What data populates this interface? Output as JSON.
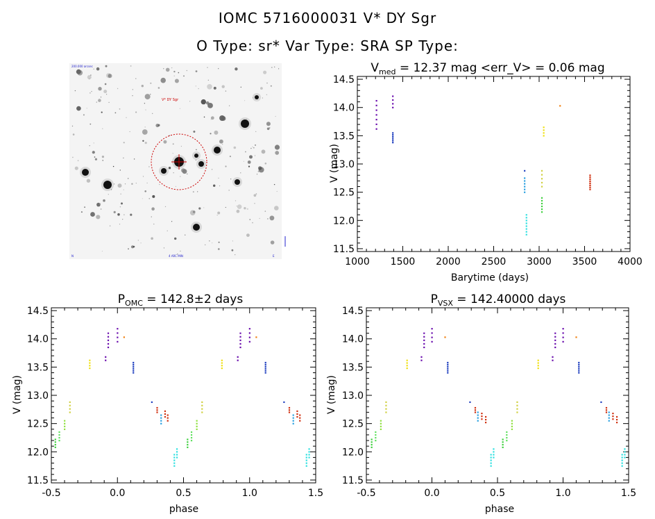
{
  "header": {
    "title_line1": "IOMC 5716000031    V* DY Sgr",
    "title_line2": "O Type: sr*   Var Type: SRA   SP Type:"
  },
  "finder_image": {
    "corner_labels": {
      "top_left": "200.000 arcsec",
      "bottom_left": "N",
      "bottom_center": "4 ARC MIN",
      "bottom_right": "E",
      "target_label": "V* DY Sgr"
    },
    "circle_color": "#cc0000"
  },
  "chart_data": [
    {
      "type": "scatter",
      "id": "lightcurve",
      "title": {
        "main": "V",
        "sub": "med",
        "rest": " = 12.37 mag <err_V> = 0.06 mag"
      },
      "xlabel": "Barytime (days)",
      "ylabel": "V (mag)",
      "xlim": [
        1000,
        4000
      ],
      "ylim": [
        14.55,
        11.45
      ],
      "xticks": [
        1000,
        1500,
        2000,
        2500,
        3000,
        3500,
        4000
      ],
      "yticks": [
        11.5,
        12.0,
        12.5,
        13.0,
        13.5,
        14.0,
        14.5
      ],
      "clusters": [
        {
          "x": 1210,
          "y0": 13.62,
          "y1": 14.12,
          "color": "#6a0dad",
          "n": 7
        },
        {
          "x": 1390,
          "y0": 13.38,
          "y1": 13.55,
          "color": "#1f3fbf",
          "n": 6
        },
        {
          "x": 1390,
          "y0": 14.0,
          "y1": 14.2,
          "color": "#6a0dad",
          "n": 4
        },
        {
          "x": 2840,
          "y0": 12.5,
          "y1": 12.75,
          "color": "#2aa0e0",
          "n": 6
        },
        {
          "x": 2840,
          "y0": 12.88,
          "y1": 12.9,
          "color": "#1f3fbf",
          "n": 1
        },
        {
          "x": 2860,
          "y0": 11.75,
          "y1": 12.1,
          "color": "#30e0e0",
          "n": 8
        },
        {
          "x": 3030,
          "y0": 12.15,
          "y1": 12.4,
          "color": "#40d040",
          "n": 6
        },
        {
          "x": 3030,
          "y0": 12.6,
          "y1": 12.88,
          "color": "#d0d040",
          "n": 5
        },
        {
          "x": 3050,
          "y0": 13.5,
          "y1": 13.65,
          "color": "#f0e010",
          "n": 4
        },
        {
          "x": 3230,
          "y0": 14.03,
          "y1": 14.03,
          "color": "#f08010",
          "n": 1
        },
        {
          "x": 3560,
          "y0": 12.55,
          "y1": 12.8,
          "color": "#d03010",
          "n": 8
        }
      ]
    },
    {
      "type": "scatter",
      "id": "phase_omc",
      "title": {
        "main": "P",
        "sub": "OMC",
        "rest": " = 142.8±2 days"
      },
      "xlabel": "phase",
      "ylabel": "V (mag)",
      "xlim": [
        -0.5,
        1.5
      ],
      "ylim": [
        14.55,
        11.45
      ],
      "xticks": [
        -0.5,
        0.0,
        0.5,
        1.0,
        1.5
      ],
      "yticks": [
        11.5,
        12.0,
        12.5,
        13.0,
        13.5,
        14.0,
        14.5
      ],
      "clusters": [
        {
          "x": -0.47,
          "y0": 12.08,
          "y1": 12.22,
          "color": "#40d040",
          "n": 4
        },
        {
          "x": -0.44,
          "y0": 12.2,
          "y1": 12.35,
          "color": "#60e060",
          "n": 4
        },
        {
          "x": -0.4,
          "y0": 12.4,
          "y1": 12.55,
          "color": "#90e040",
          "n": 4
        },
        {
          "x": -0.36,
          "y0": 12.7,
          "y1": 12.88,
          "color": "#d0d040",
          "n": 4
        },
        {
          "x": -0.21,
          "y0": 13.48,
          "y1": 13.62,
          "color": "#f0e010",
          "n": 4
        },
        {
          "x": -0.09,
          "y0": 13.62,
          "y1": 13.68,
          "color": "#6a0dad",
          "n": 2
        },
        {
          "x": -0.07,
          "y0": 13.85,
          "y1": 14.1,
          "color": "#6a0dad",
          "n": 5
        },
        {
          "x": 0.0,
          "y0": 13.95,
          "y1": 14.18,
          "color": "#6a0dad",
          "n": 4
        },
        {
          "x": 0.05,
          "y0": 14.03,
          "y1": 14.03,
          "color": "#f08010",
          "n": 1
        },
        {
          "x": 0.12,
          "y0": 13.4,
          "y1": 13.58,
          "color": "#1f3fbf",
          "n": 6
        },
        {
          "x": 0.26,
          "y0": 12.88,
          "y1": 12.9,
          "color": "#1f3fbf",
          "n": 1
        },
        {
          "x": 0.3,
          "y0": 12.7,
          "y1": 12.78,
          "color": "#d03010",
          "n": 3
        },
        {
          "x": 0.33,
          "y0": 12.5,
          "y1": 12.65,
          "color": "#2aa0e0",
          "n": 4
        },
        {
          "x": 0.36,
          "y0": 12.62,
          "y1": 12.72,
          "color": "#d03010",
          "n": 3
        },
        {
          "x": 0.38,
          "y0": 12.55,
          "y1": 12.65,
          "color": "#d03010",
          "n": 3
        },
        {
          "x": 0.43,
          "y0": 11.75,
          "y1": 11.95,
          "color": "#30e0e0",
          "n": 5
        },
        {
          "x": 0.45,
          "y0": 11.9,
          "y1": 12.05,
          "color": "#30e0e0",
          "n": 4
        },
        {
          "x": 0.53,
          "y0": 12.08,
          "y1": 12.22,
          "color": "#40d040",
          "n": 4
        },
        {
          "x": 0.56,
          "y0": 12.2,
          "y1": 12.35,
          "color": "#60e060",
          "n": 4
        },
        {
          "x": 0.6,
          "y0": 12.4,
          "y1": 12.55,
          "color": "#90e040",
          "n": 4
        },
        {
          "x": 0.64,
          "y0": 12.7,
          "y1": 12.88,
          "color": "#d0d040",
          "n": 4
        },
        {
          "x": 0.79,
          "y0": 13.48,
          "y1": 13.62,
          "color": "#f0e010",
          "n": 4
        },
        {
          "x": 0.91,
          "y0": 13.62,
          "y1": 13.68,
          "color": "#6a0dad",
          "n": 2
        },
        {
          "x": 0.93,
          "y0": 13.85,
          "y1": 14.1,
          "color": "#6a0dad",
          "n": 5
        },
        {
          "x": 1.0,
          "y0": 13.95,
          "y1": 14.18,
          "color": "#6a0dad",
          "n": 4
        },
        {
          "x": 1.05,
          "y0": 14.03,
          "y1": 14.03,
          "color": "#f08010",
          "n": 1
        },
        {
          "x": 1.12,
          "y0": 13.4,
          "y1": 13.58,
          "color": "#1f3fbf",
          "n": 6
        },
        {
          "x": 1.26,
          "y0": 12.88,
          "y1": 12.9,
          "color": "#1f3fbf",
          "n": 1
        },
        {
          "x": 1.3,
          "y0": 12.7,
          "y1": 12.78,
          "color": "#d03010",
          "n": 3
        },
        {
          "x": 1.33,
          "y0": 12.5,
          "y1": 12.65,
          "color": "#2aa0e0",
          "n": 4
        },
        {
          "x": 1.36,
          "y0": 12.62,
          "y1": 12.72,
          "color": "#d03010",
          "n": 3
        },
        {
          "x": 1.38,
          "y0": 12.55,
          "y1": 12.65,
          "color": "#d03010",
          "n": 3
        },
        {
          "x": 1.43,
          "y0": 11.75,
          "y1": 11.95,
          "color": "#30e0e0",
          "n": 5
        },
        {
          "x": 1.45,
          "y0": 11.9,
          "y1": 12.05,
          "color": "#30e0e0",
          "n": 4
        }
      ]
    },
    {
      "type": "scatter",
      "id": "phase_vsx",
      "title": {
        "main": "P",
        "sub": "VSX",
        "rest": " = 142.40000 days"
      },
      "xlabel": "phase",
      "ylabel": "V (mag)",
      "xlim": [
        -0.5,
        1.5
      ],
      "ylim": [
        14.55,
        11.45
      ],
      "xticks": [
        -0.5,
        0.0,
        0.5,
        1.0,
        1.5
      ],
      "yticks": [
        11.5,
        12.0,
        12.5,
        13.0,
        13.5,
        14.0,
        14.5
      ],
      "clusters": [
        {
          "x": -0.46,
          "y0": 12.08,
          "y1": 12.22,
          "color": "#40d040",
          "n": 4
        },
        {
          "x": -0.43,
          "y0": 12.2,
          "y1": 12.35,
          "color": "#60e060",
          "n": 4
        },
        {
          "x": -0.39,
          "y0": 12.4,
          "y1": 12.55,
          "color": "#90e040",
          "n": 4
        },
        {
          "x": -0.35,
          "y0": 12.7,
          "y1": 12.88,
          "color": "#d0d040",
          "n": 4
        },
        {
          "x": -0.19,
          "y0": 13.48,
          "y1": 13.62,
          "color": "#f0e010",
          "n": 4
        },
        {
          "x": -0.08,
          "y0": 13.62,
          "y1": 13.68,
          "color": "#6a0dad",
          "n": 2
        },
        {
          "x": -0.06,
          "y0": 13.85,
          "y1": 14.1,
          "color": "#6a0dad",
          "n": 5
        },
        {
          "x": 0.0,
          "y0": 13.95,
          "y1": 14.18,
          "color": "#6a0dad",
          "n": 4
        },
        {
          "x": 0.1,
          "y0": 14.03,
          "y1": 14.03,
          "color": "#f08010",
          "n": 1
        },
        {
          "x": 0.12,
          "y0": 13.4,
          "y1": 13.58,
          "color": "#1f3fbf",
          "n": 6
        },
        {
          "x": 0.29,
          "y0": 12.88,
          "y1": 12.9,
          "color": "#1f3fbf",
          "n": 1
        },
        {
          "x": 0.33,
          "y0": 12.7,
          "y1": 12.78,
          "color": "#d03010",
          "n": 3
        },
        {
          "x": 0.35,
          "y0": 12.55,
          "y1": 12.7,
          "color": "#2aa0e0",
          "n": 4
        },
        {
          "x": 0.38,
          "y0": 12.58,
          "y1": 12.68,
          "color": "#d03010",
          "n": 3
        },
        {
          "x": 0.41,
          "y0": 12.52,
          "y1": 12.62,
          "color": "#d03010",
          "n": 3
        },
        {
          "x": 0.45,
          "y0": 11.75,
          "y1": 11.95,
          "color": "#30e0e0",
          "n": 5
        },
        {
          "x": 0.47,
          "y0": 11.9,
          "y1": 12.05,
          "color": "#30e0e0",
          "n": 4
        },
        {
          "x": 0.54,
          "y0": 12.08,
          "y1": 12.22,
          "color": "#40d040",
          "n": 4
        },
        {
          "x": 0.57,
          "y0": 12.2,
          "y1": 12.35,
          "color": "#60e060",
          "n": 4
        },
        {
          "x": 0.61,
          "y0": 12.4,
          "y1": 12.55,
          "color": "#90e040",
          "n": 4
        },
        {
          "x": 0.65,
          "y0": 12.7,
          "y1": 12.88,
          "color": "#d0d040",
          "n": 4
        },
        {
          "x": 0.81,
          "y0": 13.48,
          "y1": 13.62,
          "color": "#f0e010",
          "n": 4
        },
        {
          "x": 0.92,
          "y0": 13.62,
          "y1": 13.68,
          "color": "#6a0dad",
          "n": 2
        },
        {
          "x": 0.94,
          "y0": 13.85,
          "y1": 14.1,
          "color": "#6a0dad",
          "n": 5
        },
        {
          "x": 1.0,
          "y0": 13.95,
          "y1": 14.18,
          "color": "#6a0dad",
          "n": 4
        },
        {
          "x": 1.1,
          "y0": 14.03,
          "y1": 14.03,
          "color": "#f08010",
          "n": 1
        },
        {
          "x": 1.12,
          "y0": 13.4,
          "y1": 13.58,
          "color": "#1f3fbf",
          "n": 6
        },
        {
          "x": 1.29,
          "y0": 12.88,
          "y1": 12.9,
          "color": "#1f3fbf",
          "n": 1
        },
        {
          "x": 1.33,
          "y0": 12.7,
          "y1": 12.78,
          "color": "#d03010",
          "n": 3
        },
        {
          "x": 1.35,
          "y0": 12.55,
          "y1": 12.7,
          "color": "#2aa0e0",
          "n": 4
        },
        {
          "x": 1.38,
          "y0": 12.58,
          "y1": 12.68,
          "color": "#d03010",
          "n": 3
        },
        {
          "x": 1.41,
          "y0": 12.52,
          "y1": 12.62,
          "color": "#d03010",
          "n": 3
        },
        {
          "x": 1.45,
          "y0": 11.75,
          "y1": 11.95,
          "color": "#30e0e0",
          "n": 5
        },
        {
          "x": 1.47,
          "y0": 11.9,
          "y1": 12.05,
          "color": "#30e0e0",
          "n": 4
        }
      ]
    }
  ]
}
